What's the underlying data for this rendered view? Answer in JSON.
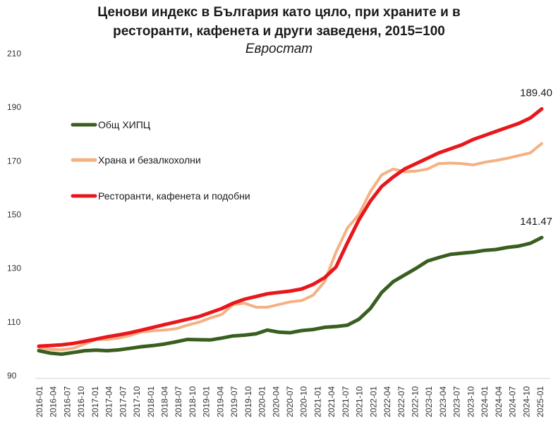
{
  "chart_data": {
    "type": "line",
    "title_line1": "Ценови индекс в България като цяло, при храните и в",
    "title_line2": "ресторанти, кафенета и други заведеня, 2015=100",
    "subtitle": "Евростат",
    "xlabel": "",
    "ylabel": "",
    "ylim": [
      90,
      210
    ],
    "yticks": [
      90,
      110,
      130,
      150,
      170,
      190,
      210
    ],
    "legend_position": "left",
    "grid": false,
    "x_tick_labels": [
      "2016-01",
      "2016-04",
      "2016-07",
      "2016-10",
      "2017-01",
      "2017-04",
      "2017-07",
      "2017-10",
      "2018-01",
      "2018-04",
      "2018-07",
      "2018-10",
      "2019-01",
      "2019-04",
      "2019-07",
      "2019-10",
      "2020-01",
      "2020-04",
      "2020-07",
      "2020-10",
      "2021-01",
      "2021-04",
      "2021-07",
      "2021-10",
      "2022-01",
      "2022-04",
      "2022-07",
      "2022-10",
      "2023-01",
      "2023-04",
      "2023-07",
      "2023-10",
      "2024-01",
      "2024-04",
      "2024-07",
      "2024-10",
      "2025-01"
    ],
    "series": [
      {
        "name": "Общ ХИПЦ",
        "color": "#3a5e1f",
        "values": [
          99.3,
          98.4,
          98.0,
          98.6,
          99.3,
          99.5,
          99.3,
          99.6,
          100.2,
          100.8,
          101.2,
          101.8,
          102.6,
          103.5,
          103.4,
          103.3,
          104.0,
          104.8,
          105.1,
          105.6,
          107.0,
          106.2,
          106.0,
          106.8,
          107.2,
          108.0,
          108.3,
          108.8,
          111.0,
          115.0,
          121.0,
          125.0,
          127.5,
          130.0,
          132.7,
          134.0,
          135.2,
          135.6,
          136.0,
          136.7,
          137.0,
          137.8,
          138.3,
          139.3,
          141.47
        ],
        "end_label": "141.47"
      },
      {
        "name": "Храна и безалкохолни",
        "color": "#f4b183",
        "values": [
          100.5,
          99.8,
          99.6,
          100.2,
          101.8,
          103.5,
          103.5,
          104.0,
          105.0,
          106.3,
          106.7,
          107.0,
          107.5,
          108.8,
          109.9,
          111.5,
          112.8,
          116.5,
          117.0,
          115.5,
          115.5,
          116.5,
          117.5,
          118.0,
          120.0,
          125.0,
          136.0,
          145.0,
          150.0,
          158.5,
          164.8,
          167.0,
          166.0,
          166.2,
          167.0,
          169.0,
          169.2,
          169.0,
          168.5,
          169.5,
          170.2,
          171.0,
          172.0,
          173.0,
          176.5
        ],
        "end_label": ""
      },
      {
        "name": "Ресторанти, кафенета и подобни",
        "color": "#e8171c",
        "values": [
          101.0,
          101.2,
          101.5,
          102.0,
          102.8,
          103.6,
          104.5,
          105.2,
          106.0,
          107.0,
          108.0,
          109.0,
          110.0,
          111.0,
          112.0,
          113.5,
          115.0,
          117.0,
          118.5,
          119.5,
          120.5,
          121.0,
          121.5,
          122.3,
          124.0,
          126.5,
          130.5,
          139.5,
          148.0,
          155.0,
          160.5,
          164.0,
          167.0,
          169.0,
          171.0,
          173.0,
          174.5,
          176.0,
          178.0,
          179.5,
          181.0,
          182.5,
          184.0,
          186.0,
          189.4
        ],
        "end_label": "189.40"
      }
    ]
  }
}
